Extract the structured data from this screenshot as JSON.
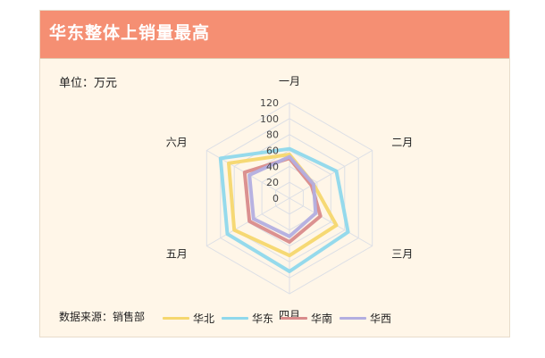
{
  "chart": {
    "title": "华东整体上销量最高",
    "unit_text": "单位：万元",
    "source_text": "数据来源：销售部"
  },
  "chart_data": {
    "type": "radar",
    "categories": [
      "一月",
      "二月",
      "三月",
      "四月",
      "五月",
      "六月"
    ],
    "ticks": [
      0,
      20,
      40,
      60,
      80,
      100,
      120
    ],
    "rlim": [
      0,
      120
    ],
    "legend_position": "bottom",
    "series": [
      {
        "name": "华北",
        "color": "#f5d76e",
        "values": [
          55,
          35,
          68,
          72,
          80,
          88
        ]
      },
      {
        "name": "华东",
        "color": "#8fd8ec",
        "values": [
          62,
          68,
          85,
          92,
          90,
          100
        ]
      },
      {
        "name": "华南",
        "color": "#d98b8b",
        "values": [
          50,
          32,
          45,
          55,
          58,
          65
        ]
      },
      {
        "name": "华西",
        "color": "#b3aee0",
        "values": [
          52,
          35,
          38,
          48,
          52,
          58
        ]
      }
    ]
  }
}
